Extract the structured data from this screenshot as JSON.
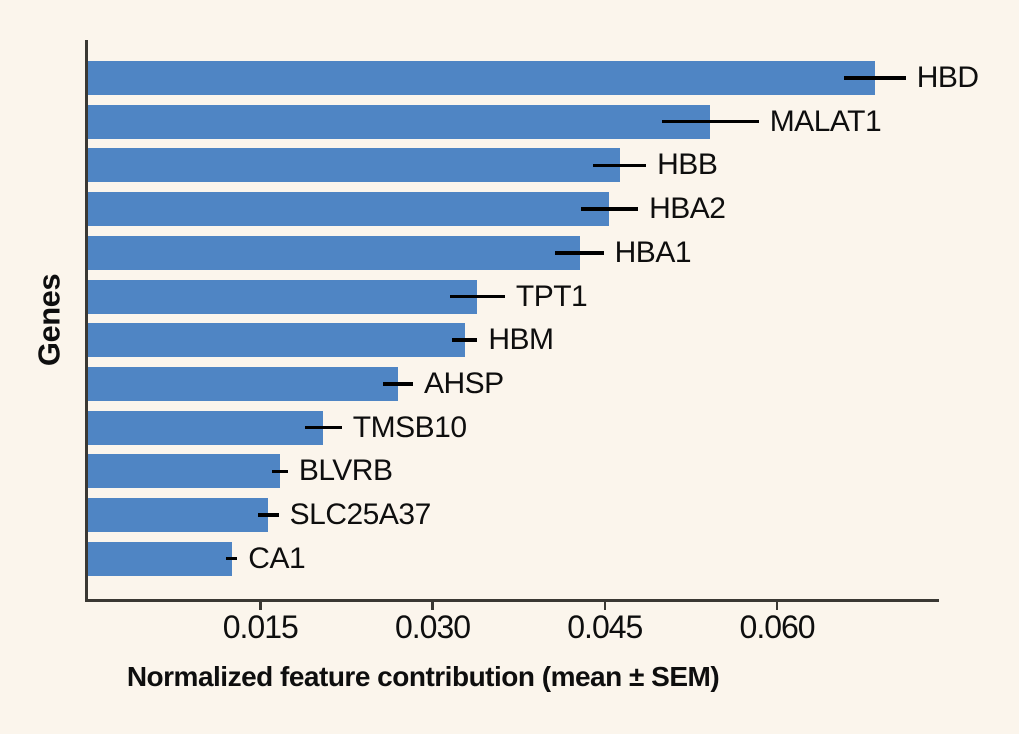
{
  "chart_data": {
    "type": "bar",
    "orientation": "horizontal",
    "title": "",
    "xlabel": "Normalized feature contribution (mean ± SEM)",
    "ylabel": "Genes",
    "categories": [
      "HBD",
      "MALAT1",
      "HBB",
      "HBA2",
      "HBA1",
      "TPT1",
      "HBM",
      "AHSP",
      "TMSB10",
      "BLVRB",
      "SLC25A37",
      "CA1"
    ],
    "series": [
      {
        "name": "Normalized feature contribution (mean)",
        "values": [
          0.0685,
          0.0542,
          0.0463,
          0.0454,
          0.0428,
          0.0339,
          0.0328,
          0.027,
          0.0205,
          0.0167,
          0.0157,
          0.0125
        ],
        "sem": [
          0.0027,
          0.0042,
          0.0023,
          0.0025,
          0.0021,
          0.0024,
          0.0011,
          0.0013,
          0.0016,
          0.0007,
          0.0009,
          0.0005
        ]
      }
    ],
    "xticks": [
      0.015,
      0.03,
      0.045,
      0.06
    ],
    "xtick_labels": [
      "0.015",
      "0.030",
      "0.045",
      "0.060"
    ],
    "xlim": [
      0,
      0.0741
    ],
    "grid": false,
    "legend": "none",
    "error_bars": "horizontal, ± SEM, no caps",
    "bar_color": "#4f85c4",
    "error_bar_color": "#000000",
    "background_color": "#fbf5ec",
    "axis_color": "#3a3833",
    "text_color": "#0e0e0e"
  }
}
